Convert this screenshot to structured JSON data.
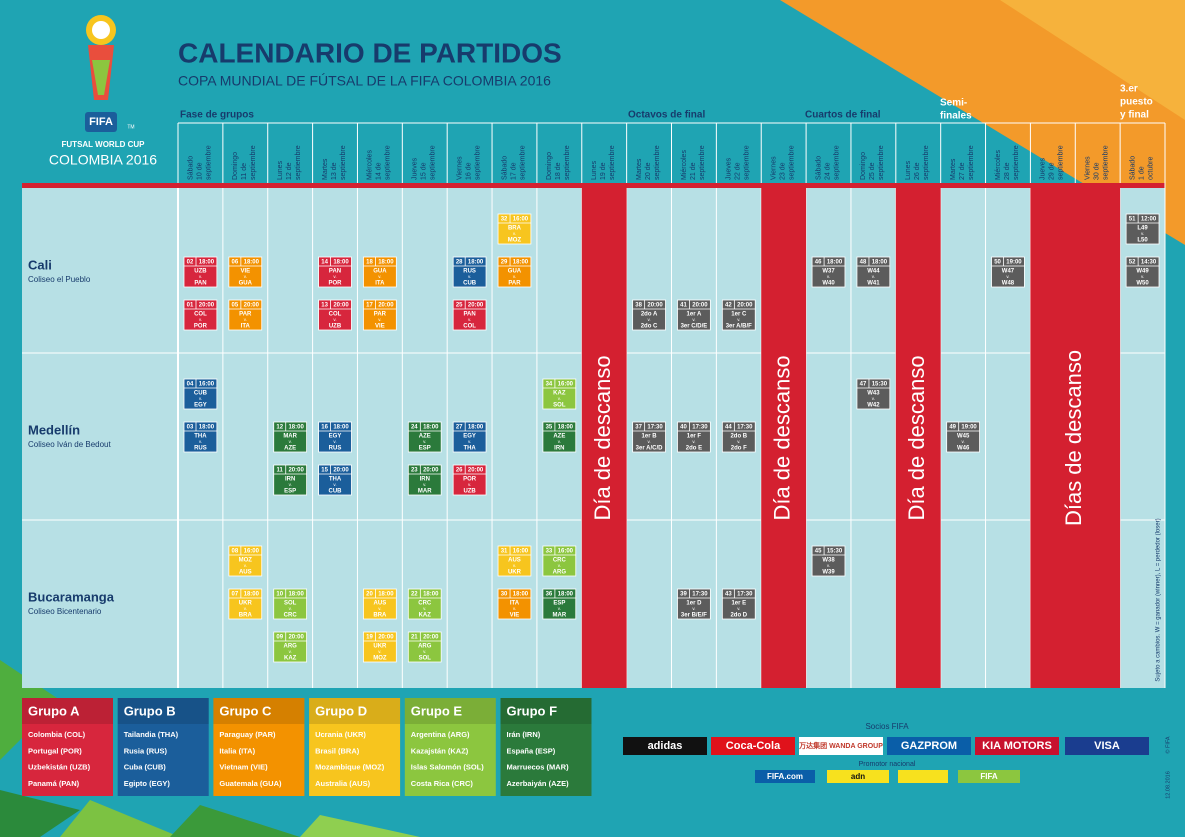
{
  "logo": {
    "fifa": "FIFA",
    "tm": "TM",
    "line1": "FUTSAL WORLD CUP",
    "line2": "COLOMBIA 2016"
  },
  "title": "CALENDARIO DE PARTIDOS",
  "subtitle": "COPA MUNDIAL DE FÚTSAL DE LA FIFA COLOMBIA 2016",
  "phases": [
    {
      "lines": [
        "Fase de grupos"
      ]
    },
    {
      "lines": [
        "Octavos de final"
      ]
    },
    {
      "lines": [
        "Cuartos de final"
      ]
    },
    {
      "lines": [
        "Semi-",
        "finales"
      ]
    },
    {
      "lines": [
        "3.er",
        "puesto",
        "y final"
      ]
    }
  ],
  "days": [
    {
      "weekday": "Sábado",
      "date": "10 de",
      "month": "septiembre"
    },
    {
      "weekday": "Domingo",
      "date": "11 de",
      "month": "septiembre"
    },
    {
      "weekday": "Lunes",
      "date": "12 de",
      "month": "septiembre"
    },
    {
      "weekday": "Martes",
      "date": "13 de",
      "month": "septiembre"
    },
    {
      "weekday": "Miércoles",
      "date": "14 de",
      "month": "septiembre"
    },
    {
      "weekday": "Jueves",
      "date": "15 de",
      "month": "septiembre"
    },
    {
      "weekday": "Viernes",
      "date": "16 de",
      "month": "septiembre"
    },
    {
      "weekday": "Sábado",
      "date": "17 de",
      "month": "septiembre"
    },
    {
      "weekday": "Domingo",
      "date": "18 de",
      "month": "septiembre"
    },
    {
      "weekday": "Lunes",
      "date": "19 de",
      "month": "septiembre"
    },
    {
      "weekday": "Martes",
      "date": "20 de",
      "month": "septiembre"
    },
    {
      "weekday": "Miércoles",
      "date": "21 de",
      "month": "septiembre"
    },
    {
      "weekday": "Jueves",
      "date": "22 de",
      "month": "septiembre"
    },
    {
      "weekday": "Viernes",
      "date": "23 de",
      "month": "septiembre"
    },
    {
      "weekday": "Sábado",
      "date": "24 de",
      "month": "septiembre"
    },
    {
      "weekday": "Domingo",
      "date": "25 de",
      "month": "septiembre"
    },
    {
      "weekday": "Lunes",
      "date": "26 de",
      "month": "septiembre"
    },
    {
      "weekday": "Martes",
      "date": "27 de",
      "month": "septiembre"
    },
    {
      "weekday": "Miércoles",
      "date": "28 de",
      "month": "septiembre"
    },
    {
      "weekday": "Jueves",
      "date": "29 de",
      "month": "septiembre"
    },
    {
      "weekday": "Viernes",
      "date": "30 de",
      "month": "septiembre"
    },
    {
      "weekday": "Sábado",
      "date": "1 de",
      "month": "octubre"
    }
  ],
  "rest": [
    "Día de descanso",
    "Día de descanso",
    "Día de descanso",
    "Días de descanso"
  ],
  "vs": "v.",
  "venues": [
    {
      "name": "Cali",
      "stadium": "Coliseo el Pueblo",
      "days": [
        [
          null,
          {
            "no": "02",
            "time": "18:00",
            "home": "UZB",
            "away": "PAN",
            "color": "#d7263d"
          },
          {
            "no": "01",
            "time": "20:00",
            "home": "COL",
            "away": "POR",
            "color": "#d7263d"
          }
        ],
        [
          null,
          {
            "no": "06",
            "time": "18:00",
            "home": "VIE",
            "away": "GUA",
            "color": "#f39200"
          },
          {
            "no": "05",
            "time": "20:00",
            "home": "PAR",
            "away": "ITA",
            "color": "#f39200"
          }
        ],
        [],
        [
          null,
          {
            "no": "14",
            "time": "18:00",
            "home": "PAN",
            "away": "POR",
            "color": "#d7263d"
          },
          {
            "no": "13",
            "time": "20:00",
            "home": "COL",
            "away": "UZB",
            "color": "#d7263d"
          }
        ],
        [
          null,
          {
            "no": "18",
            "time": "18:00",
            "home": "GUA",
            "away": "ITA",
            "color": "#f39200"
          },
          {
            "no": "17",
            "time": "20:00",
            "home": "PAR",
            "away": "VIE",
            "color": "#f39200"
          }
        ],
        [],
        [
          null,
          {
            "no": "28",
            "time": "18:00",
            "home": "RUS",
            "away": "CUB",
            "color": "#1b5e9b"
          },
          {
            "no": "25",
            "time": "20:00",
            "home": "PAN",
            "away": "COL",
            "color": "#d7263d"
          }
        ],
        [
          {
            "no": "32",
            "time": "16:00",
            "home": "BRA",
            "away": "MOZ",
            "color": "#f7c51e"
          },
          {
            "no": "29",
            "time": "18:00",
            "home": "GUA",
            "away": "PAR",
            "color": "#f39200"
          },
          null
        ],
        [],
        [],
        [
          null,
          null,
          {
            "no": "38",
            "time": "20:00",
            "home": "2do A",
            "away": "2do C",
            "color": "#5c5c5c"
          }
        ],
        [
          null,
          null,
          {
            "no": "41",
            "time": "20:00",
            "home": "1er A",
            "away": "3er C/D/E",
            "color": "#5c5c5c"
          }
        ],
        [
          null,
          null,
          {
            "no": "42",
            "time": "20:00",
            "home": "1er C",
            "away": "3er A/B/F",
            "color": "#5c5c5c"
          }
        ],
        [],
        [
          null,
          {
            "no": "46",
            "time": "18:00",
            "home": "W37",
            "away": "W40",
            "color": "#5c5c5c"
          },
          null
        ],
        [
          null,
          {
            "no": "48",
            "time": "18:00",
            "home": "W44",
            "away": "W41",
            "color": "#5c5c5c"
          },
          null
        ],
        [],
        [],
        [
          null,
          {
            "no": "50",
            "time": "19:00",
            "home": "W47",
            "away": "W48",
            "color": "#5c5c5c"
          },
          null
        ],
        [],
        [],
        [
          {
            "no": "51",
            "time": "12:00",
            "home": "L49",
            "away": "L50",
            "color": "#5c5c5c"
          },
          {
            "no": "52",
            "time": "14:30",
            "home": "W49",
            "away": "W50",
            "color": "#5c5c5c"
          },
          null
        ]
      ]
    },
    {
      "name": "Medellín",
      "stadium": "Coliseo Iván de Bedout",
      "days": [
        [
          {
            "no": "04",
            "time": "16:00",
            "home": "CUB",
            "away": "EGY",
            "color": "#1b5e9b"
          },
          {
            "no": "03",
            "time": "18:00",
            "home": "THA",
            "away": "RUS",
            "color": "#1b5e9b"
          },
          null
        ],
        [],
        [
          null,
          {
            "no": "12",
            "time": "18:00",
            "home": "MAR",
            "away": "AZE",
            "color": "#2b7a3b"
          },
          {
            "no": "11",
            "time": "20:00",
            "home": "IRN",
            "away": "ESP",
            "color": "#2b7a3b"
          }
        ],
        [
          null,
          {
            "no": "16",
            "time": "18:00",
            "home": "EGY",
            "away": "RUS",
            "color": "#1b5e9b"
          },
          {
            "no": "15",
            "time": "20:00",
            "home": "THA",
            "away": "CUB",
            "color": "#1b5e9b"
          }
        ],
        [],
        [
          null,
          {
            "no": "24",
            "time": "18:00",
            "home": "AZE",
            "away": "ESP",
            "color": "#2b7a3b"
          },
          {
            "no": "23",
            "time": "20:00",
            "home": "IRN",
            "away": "MAR",
            "color": "#2b7a3b"
          }
        ],
        [
          null,
          {
            "no": "27",
            "time": "18:00",
            "home": "EGY",
            "away": "THA",
            "color": "#1b5e9b"
          },
          {
            "no": "26",
            "time": "20:00",
            "home": "POR",
            "away": "UZB",
            "color": "#d7263d"
          }
        ],
        [],
        [
          {
            "no": "34",
            "time": "16:00",
            "home": "KAZ",
            "away": "SOL",
            "color": "#8cc63f"
          },
          {
            "no": "35",
            "time": "18:00",
            "home": "AZE",
            "away": "IRN",
            "color": "#2b7a3b"
          },
          null
        ],
        [],
        [
          null,
          {
            "no": "37",
            "time": "17:30",
            "home": "1er B",
            "away": "3er A/C/D",
            "color": "#5c5c5c"
          },
          null
        ],
        [
          null,
          {
            "no": "40",
            "time": "17:30",
            "home": "1er F",
            "away": "2do E",
            "color": "#5c5c5c"
          },
          null
        ],
        [
          null,
          {
            "no": "44",
            "time": "17:30",
            "home": "2do B",
            "away": "2do F",
            "color": "#5c5c5c"
          },
          null
        ],
        [],
        [],
        [
          {
            "no": "47",
            "time": "15:30",
            "home": "W43",
            "away": "W42",
            "color": "#5c5c5c"
          },
          null,
          null
        ],
        [],
        [
          null,
          {
            "no": "49",
            "time": "19:00",
            "home": "W45",
            "away": "W46",
            "color": "#5c5c5c"
          },
          null
        ],
        [],
        [],
        [],
        []
      ]
    },
    {
      "name": "Bucaramanga",
      "stadium": "Coliseo Bicentenario",
      "days": [
        [],
        [
          {
            "no": "08",
            "time": "16:00",
            "home": "MOZ",
            "away": "AUS",
            "color": "#f7c51e"
          },
          {
            "no": "07",
            "time": "18:00",
            "home": "UKR",
            "away": "BRA",
            "color": "#f7c51e"
          },
          null
        ],
        [
          null,
          {
            "no": "10",
            "time": "18:00",
            "home": "SOL",
            "away": "CRC",
            "color": "#8cc63f"
          },
          {
            "no": "09",
            "time": "20:00",
            "home": "ARG",
            "away": "KAZ",
            "color": "#8cc63f"
          }
        ],
        [],
        [
          null,
          {
            "no": "20",
            "time": "18:00",
            "home": "AUS",
            "away": "BRA",
            "color": "#f7c51e"
          },
          {
            "no": "19",
            "time": "20:00",
            "home": "UKR",
            "away": "MOZ",
            "color": "#f7c51e"
          }
        ],
        [
          null,
          {
            "no": "22",
            "time": "18:00",
            "home": "CRC",
            "away": "KAZ",
            "color": "#8cc63f"
          },
          {
            "no": "21",
            "time": "20:00",
            "home": "ARG",
            "away": "SOL",
            "color": "#8cc63f"
          }
        ],
        [],
        [
          {
            "no": "31",
            "time": "16:00",
            "home": "AUS",
            "away": "UKR",
            "color": "#f7c51e"
          },
          {
            "no": "30",
            "time": "18:00",
            "home": "ITA",
            "away": "VIE",
            "color": "#f39200"
          },
          null
        ],
        [
          {
            "no": "33",
            "time": "16:00",
            "home": "CRC",
            "away": "ARG",
            "color": "#8cc63f"
          },
          {
            "no": "36",
            "time": "18:00",
            "home": "ESP",
            "away": "MAR",
            "color": "#2b7a3b"
          },
          null
        ],
        [],
        [],
        [
          null,
          {
            "no": "39",
            "time": "17:30",
            "home": "1er D",
            "away": "3er B/E/F",
            "color": "#5c5c5c"
          },
          null
        ],
        [
          null,
          {
            "no": "43",
            "time": "17:30",
            "home": "1er E",
            "away": "2do D",
            "color": "#5c5c5c"
          },
          null
        ],
        [],
        [
          {
            "no": "45",
            "time": "15:30",
            "home": "W38",
            "away": "W39",
            "color": "#5c5c5c"
          },
          null,
          null
        ],
        [],
        [],
        [],
        [],
        [],
        [],
        []
      ]
    }
  ],
  "groups": [
    {
      "name": "Grupo A",
      "color": "#d7263d",
      "teams": [
        "Colombia (COL)",
        "Portugal (POR)",
        "Uzbekistán (UZB)",
        "Panamá (PAN)"
      ]
    },
    {
      "name": "Grupo B",
      "color": "#1b5e9b",
      "teams": [
        "Tailandia (THA)",
        "Rusia (RUS)",
        "Cuba (CUB)",
        "Egipto (EGY)"
      ]
    },
    {
      "name": "Grupo C",
      "color": "#f39200",
      "teams": [
        "Paraguay (PAR)",
        "Italia (ITA)",
        "Vietnam (VIE)",
        "Guatemala (GUA)"
      ]
    },
    {
      "name": "Grupo D",
      "color": "#f7c51e",
      "teams": [
        "Ucrania (UKR)",
        "Brasil (BRA)",
        "Mozambique (MOZ)",
        "Australia (AUS)"
      ]
    },
    {
      "name": "Grupo E",
      "color": "#8cc63f",
      "teams": [
        "Argentina (ARG)",
        "Kazajstán (KAZ)",
        "Islas Salomón (SOL)",
        "Costa Rica (CRC)"
      ]
    },
    {
      "name": "Grupo F",
      "color": "#2b7a3b",
      "teams": [
        "Irán (IRN)",
        "España (ESP)",
        "Marruecos (MAR)",
        "Azerbaiyán (AZE)"
      ]
    }
  ],
  "sponsors": {
    "label": "Socios FIFA",
    "partners": [
      "adidas",
      "Coca-Cola",
      "万达集团 WANDA GROUP",
      "GAZPROM",
      "KIA MOTORS",
      "VISA"
    ],
    "national_label": "Promotor nacional",
    "national": [
      "FIFA.com",
      "adn",
      "FIFA"
    ]
  },
  "note": "Sujeto a cambios. W = ganador (winner), L = perdedor (loser)",
  "copyright": "© FIFA",
  "date": "12.08.2016"
}
